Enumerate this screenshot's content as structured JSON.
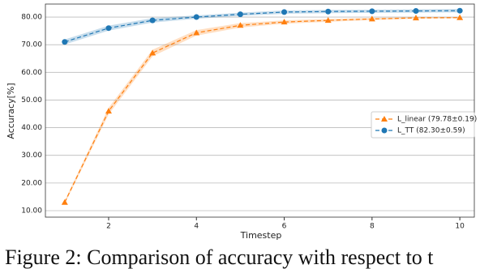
{
  "chart_data": {
    "type": "line",
    "x_label": "Timestep",
    "y_label": "Accuracy[%]",
    "x": [
      1,
      2,
      3,
      4,
      5,
      6,
      7,
      8,
      9,
      10
    ],
    "series": [
      {
        "name": "L_linear (79.78±0.19)",
        "color": "#ff7f0e",
        "marker": "triangle",
        "values": [
          13,
          46,
          67,
          74.3,
          77,
          78.2,
          78.8,
          79.3,
          79.7,
          79.78
        ],
        "errors": [
          0.6,
          1.2,
          1.2,
          1,
          0.8,
          0.6,
          0.5,
          0.4,
          0.3,
          0.19
        ]
      },
      {
        "name": "L_TT (82.30±0.59)",
        "color": "#1f77b4",
        "marker": "circle",
        "values": [
          71,
          76,
          78.8,
          80,
          81,
          81.8,
          82,
          82.1,
          82.2,
          82.3
        ],
        "errors": [
          0.9,
          0.9,
          0.8,
          0.6,
          0.6,
          0.6,
          0.6,
          0.6,
          0.6,
          0.59
        ]
      }
    ],
    "xlim": [
      0.56,
      10.33
    ],
    "ylim": [
      7.65,
      84.7
    ],
    "xticks": [
      2,
      4,
      6,
      8,
      10
    ],
    "yticks": [
      {
        "value": 10,
        "label": "10.00"
      },
      {
        "value": 20,
        "label": "20.00"
      },
      {
        "value": 30,
        "label": "30.00"
      },
      {
        "value": 40,
        "label": "40.00"
      },
      {
        "value": 50,
        "label": "50.00"
      },
      {
        "value": 60,
        "label": "60.00"
      },
      {
        "value": 70,
        "label": "70.00"
      },
      {
        "value": 80,
        "label": "80.00"
      }
    ],
    "grid": true,
    "legend": "right",
    "caption": "Figure 2:  Comparison of accuracy with respect to t"
  }
}
